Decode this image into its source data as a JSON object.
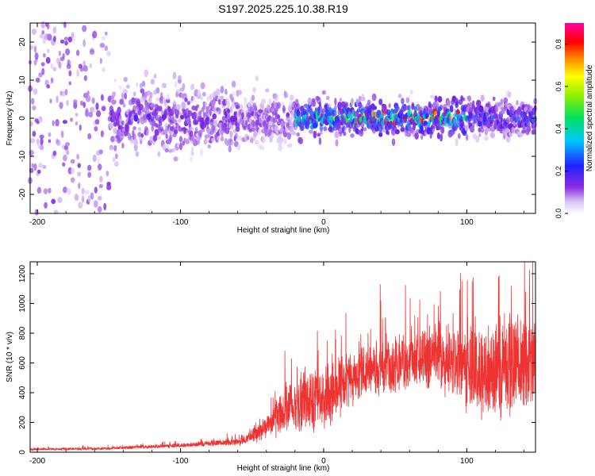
{
  "title": "S197.2025.225.10.38.R19",
  "chart_data": [
    {
      "type": "heatmap",
      "title": "S197.2025.225.10.38.R19",
      "xlabel": "Height of straight line (km)",
      "ylabel": "Frequency (Hz)",
      "xlim": [
        -205,
        148
      ],
      "ylim": [
        -25,
        25
      ],
      "x_ticks": [
        -200,
        -100,
        0,
        100
      ],
      "y_ticks": [
        -20,
        -10,
        0,
        10,
        20
      ],
      "x_tick_labels": [
        "-200",
        "-100",
        "0",
        "100"
      ],
      "y_tick_labels": [
        "-20",
        "-10",
        "0",
        "10",
        "20"
      ],
      "colorbar": {
        "label": "Normalized spectral amplitude",
        "range": [
          0.0,
          0.9
        ],
        "ticks": [
          0.0,
          0.2,
          0.4,
          0.6,
          0.8
        ],
        "tick_labels": [
          "0.0",
          "0.2",
          "0.4",
          "0.6",
          "0.8"
        ],
        "colormap": "rainbow (purple-blue-cyan-green-yellow-red-magenta)"
      },
      "description_of_density": [
        {
          "x_range": [
            -205,
            -150
          ],
          "freq_spread": 25,
          "amplitude": 0.1
        },
        {
          "x_range": [
            -150,
            -60
          ],
          "freq_spread": 8,
          "amplitude": 0.15
        },
        {
          "x_range": [
            -60,
            -20
          ],
          "freq_spread": 6,
          "amplitude": 0.12
        },
        {
          "x_range": [
            -20,
            100
          ],
          "freq_spread": 4,
          "amplitude": 0.35
        },
        {
          "x_range": [
            100,
            148
          ],
          "freq_spread": 4,
          "amplitude": 0.22
        }
      ]
    },
    {
      "type": "line",
      "xlabel": "Height of straight line (km)",
      "ylabel": "SNR (10 * v/v)",
      "xlim": [
        -205,
        148
      ],
      "ylim": [
        0,
        1280
      ],
      "x_ticks": [
        -200,
        -100,
        0,
        100
      ],
      "y_ticks": [
        0,
        200,
        400,
        600,
        800,
        1000,
        1200
      ],
      "x_tick_labels": [
        "-200",
        "-100",
        "0",
        "100"
      ],
      "y_tick_labels": [
        "0",
        "200",
        "400",
        "600",
        "800",
        "1000",
        "1200"
      ],
      "series": [
        {
          "name": "SNR",
          "color": "#ee3333",
          "envelope_x": [
            -205,
            -150,
            -100,
            -80,
            -60,
            -50,
            -40,
            -30,
            -20,
            -10,
            0,
            10,
            20,
            40,
            60,
            80,
            90,
            100,
            110,
            120,
            130,
            148
          ],
          "envelope_mean": [
            20,
            25,
            45,
            60,
            70,
            110,
            170,
            260,
            330,
            350,
            380,
            450,
            520,
            580,
            610,
            620,
            600,
            560,
            530,
            560,
            600,
            620
          ],
          "envelope_amp": [
            10,
            12,
            20,
            25,
            35,
            60,
            100,
            180,
            260,
            300,
            300,
            280,
            250,
            250,
            260,
            300,
            320,
            380,
            420,
            440,
            460,
            460
          ]
        }
      ]
    }
  ]
}
